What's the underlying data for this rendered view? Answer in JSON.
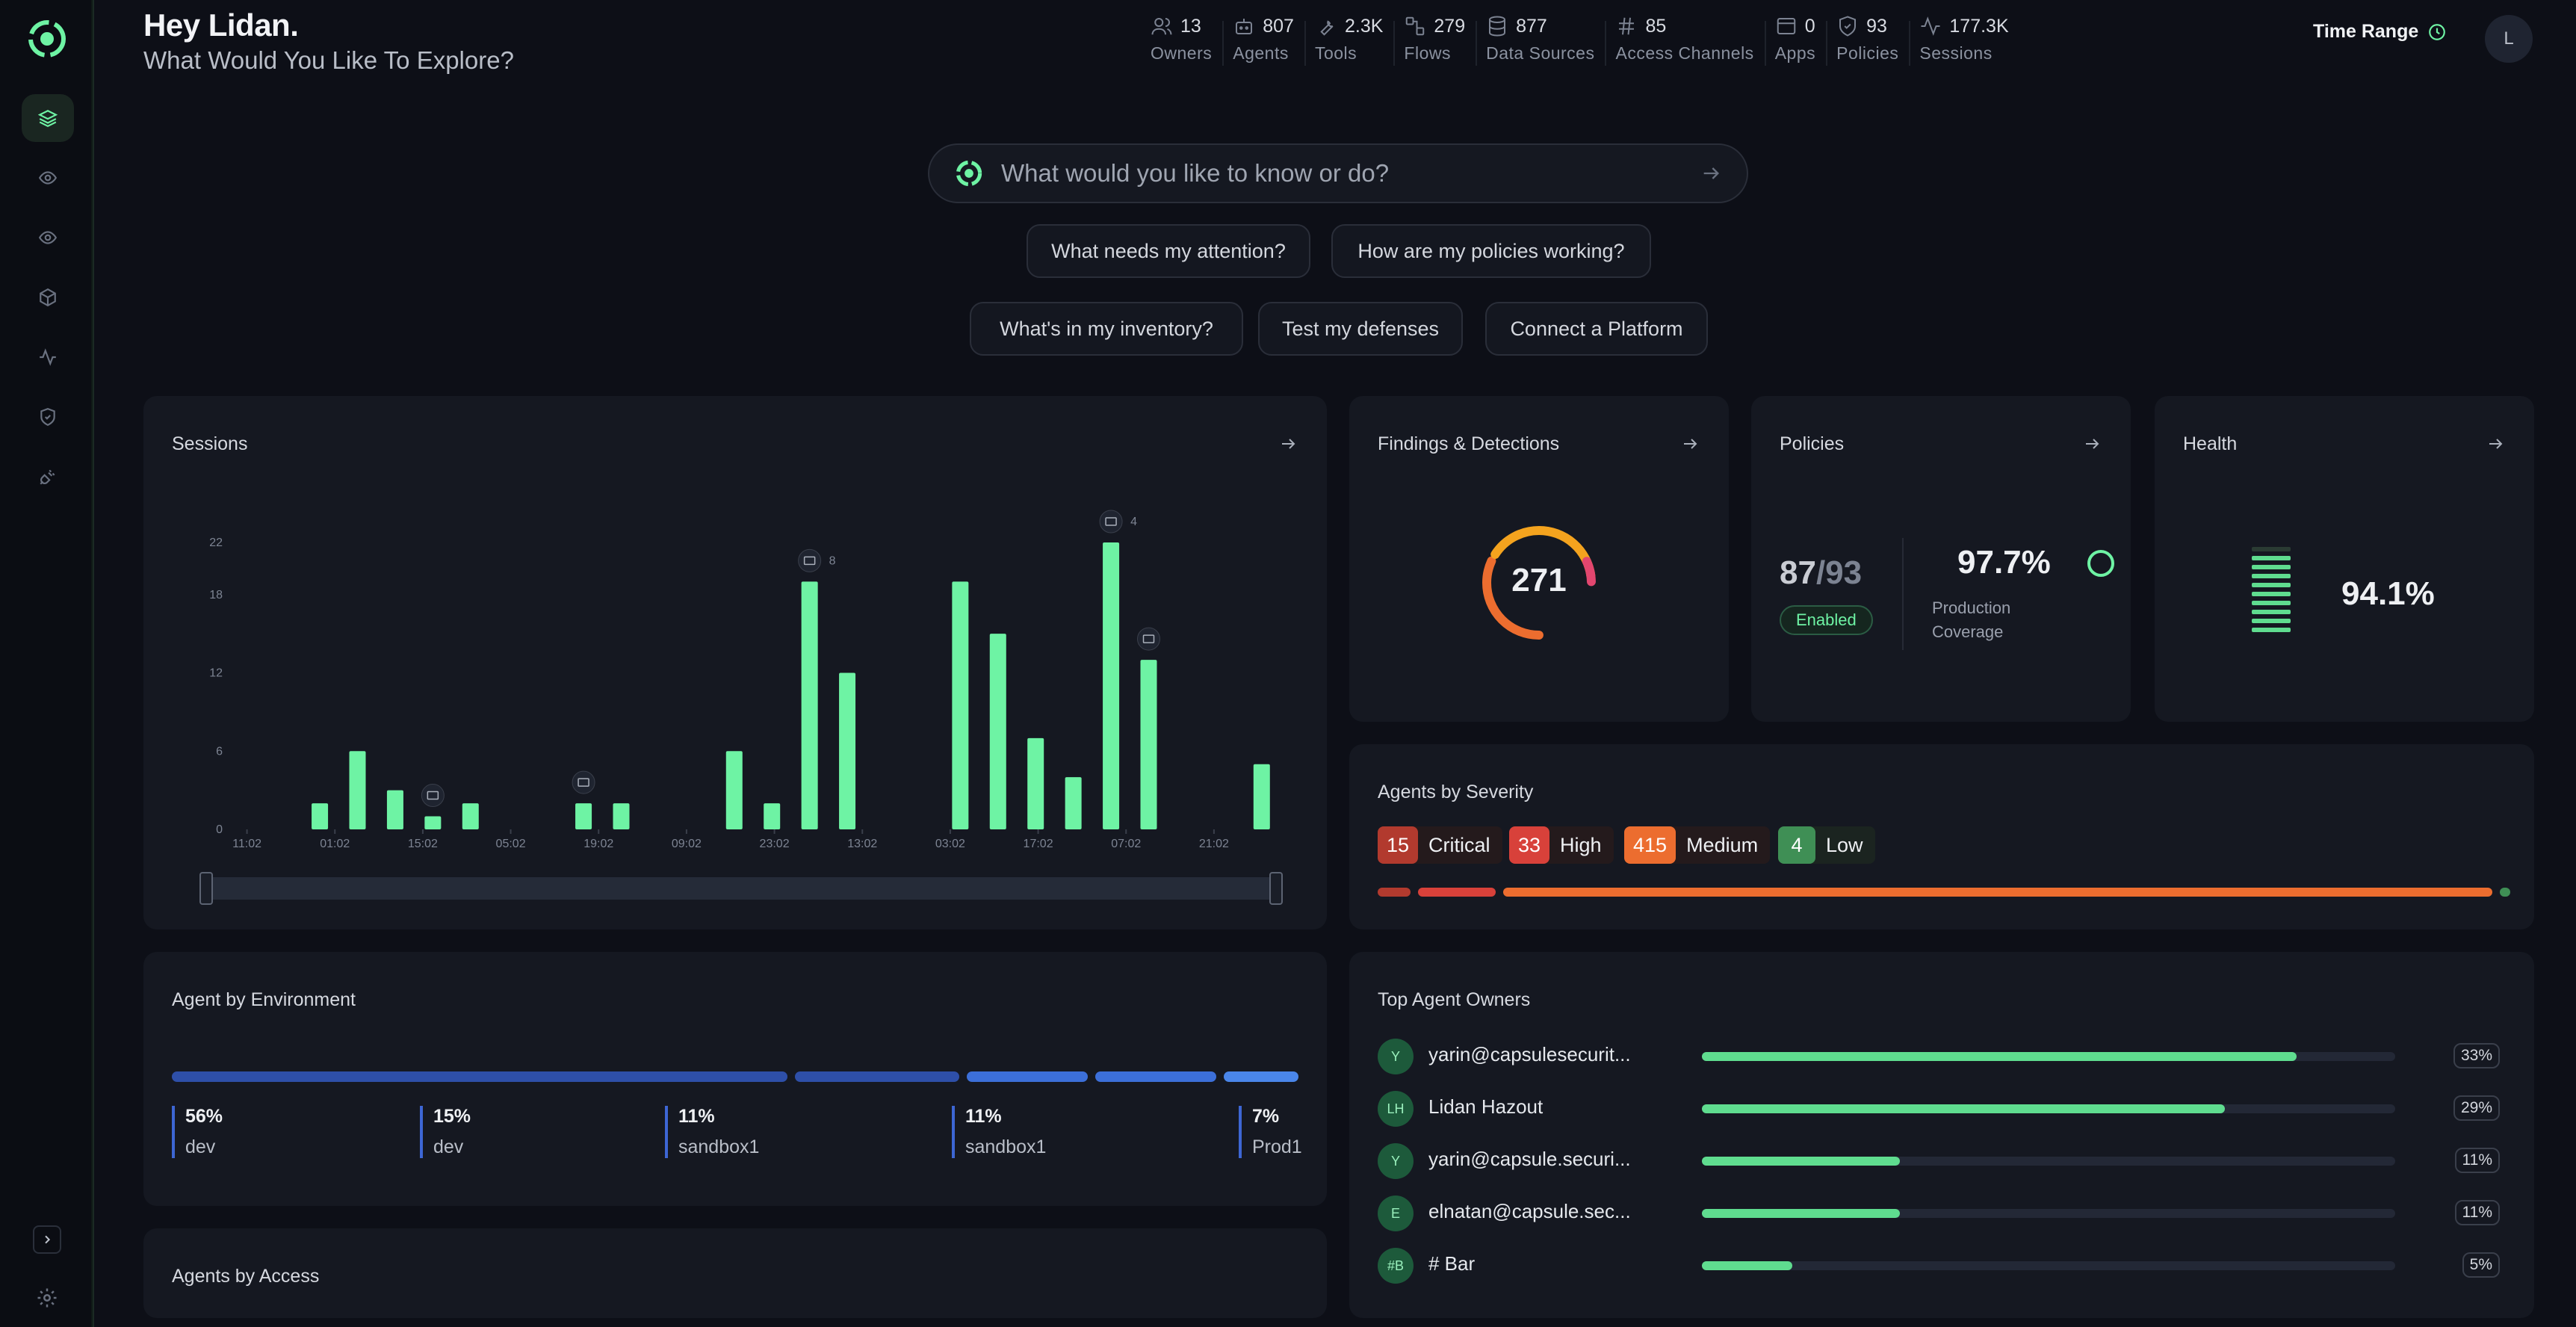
{
  "greeting": {
    "title": "Hey Lidan.",
    "subtitle": "What Would You Like To Explore?"
  },
  "stats": [
    {
      "value": "13",
      "label": "Owners",
      "icon": "users-icon"
    },
    {
      "value": "807",
      "label": "Agents",
      "icon": "robot-icon"
    },
    {
      "value": "2.3K",
      "label": "Tools",
      "icon": "wrench-icon"
    },
    {
      "value": "279",
      "label": "Flows",
      "icon": "flow-icon"
    },
    {
      "value": "877",
      "label": "Data Sources",
      "icon": "database-icon"
    },
    {
      "value": "85",
      "label": "Access Channels",
      "icon": "hash-icon"
    },
    {
      "value": "0",
      "label": "Apps",
      "icon": "window-icon"
    },
    {
      "value": "93",
      "label": "Policies",
      "icon": "shield-icon"
    },
    {
      "value": "177.3K",
      "label": "Sessions",
      "icon": "activity-icon"
    }
  ],
  "time_range": "Time Range",
  "avatar_initial": "L",
  "search": {
    "placeholder": "What would you like to know or do?"
  },
  "chips": [
    "What needs my attention?",
    "How are my policies working?",
    "What's in my inventory?",
    "Test my defenses",
    "Connect a Platform"
  ],
  "sessions": {
    "title": "Sessions",
    "markers": {
      "tool_count": "8",
      "user_count": "4"
    }
  },
  "findings": {
    "title": "Findings & Detections",
    "value": "271"
  },
  "policies": {
    "title": "Policies",
    "enabled": "87",
    "total": "/93",
    "badge": "Enabled",
    "coverage": "97.7%",
    "coverage_label": "Production Coverage"
  },
  "health": {
    "title": "Health",
    "value": "94.1%",
    "level": 0.941
  },
  "severity": {
    "title": "Agents by Severity",
    "items": [
      {
        "count": "15",
        "label": "Critical",
        "color": "#b23a2e"
      },
      {
        "count": "33",
        "label": "High",
        "color": "#d8413a"
      },
      {
        "count": "415",
        "label": "Medium",
        "color": "#ec6d2f"
      },
      {
        "count": "4",
        "label": "Low",
        "color": "#3f8f55"
      }
    ]
  },
  "environment": {
    "title": "Agent by Environment",
    "items": [
      {
        "pct": "56%",
        "name": "dev"
      },
      {
        "pct": "15%",
        "name": "dev"
      },
      {
        "pct": "11%",
        "name": "sandbox1"
      },
      {
        "pct": "11%",
        "name": "sandbox1"
      },
      {
        "pct": "7%",
        "name": "Prod1"
      }
    ]
  },
  "owners": {
    "title": "Top Agent Owners",
    "items": [
      {
        "initials": "Y",
        "name": "yarin@capsulesecurit...",
        "pct": "33%",
        "value": 33
      },
      {
        "initials": "LH",
        "name": "Lidan Hazout",
        "pct": "29%",
        "value": 29
      },
      {
        "initials": "Y",
        "name": "yarin@capsule.securi...",
        "pct": "11%",
        "value": 11
      },
      {
        "initials": "E",
        "name": "elnatan@capsule.sec...",
        "pct": "11%",
        "value": 11
      },
      {
        "initials": "#B",
        "name": "# Bar",
        "pct": "5%",
        "value": 5
      }
    ]
  },
  "access": {
    "title": "Agents by Access"
  },
  "chart_data": {
    "type": "bar",
    "title": "Sessions",
    "xlabel": "",
    "ylabel": "",
    "ylim": [
      0,
      22
    ],
    "ytick_labels": [
      "0",
      "6",
      "12",
      "18",
      "22"
    ],
    "xtick_labels": [
      "11:02",
      "01:02",
      "15:02",
      "05:02",
      "19:02",
      "09:02",
      "23:02",
      "13:02",
      "03:02",
      "17:02",
      "07:02",
      "21:02"
    ],
    "values": [
      0,
      0,
      2,
      6,
      3,
      1,
      2,
      0,
      0,
      2,
      2,
      0,
      0,
      6,
      2,
      19,
      12,
      0,
      0,
      19,
      15,
      7,
      4,
      22,
      13,
      0,
      0,
      5
    ],
    "colors": {
      "bar": "#6ef3a4"
    }
  }
}
